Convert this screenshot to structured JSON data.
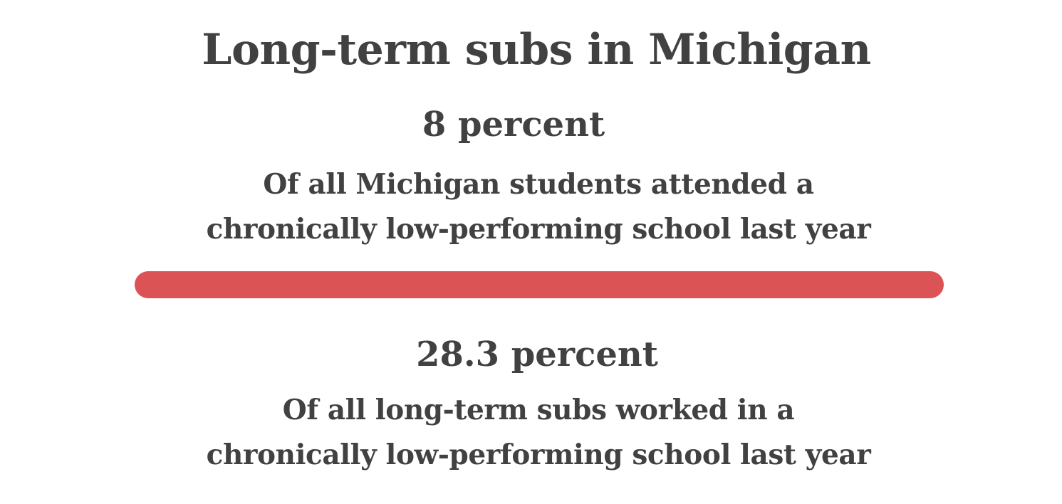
{
  "title": "Long-term subs in Michigan",
  "stat_students": {
    "value": "8 percent",
    "description_line1": "Of all Michigan students attended a",
    "description_line2": "chronically low-performing school last year"
  },
  "divider": {
    "color": "#dc5356"
  },
  "stat_subs": {
    "value": "28.3 percent",
    "description_line1": "Of all long-term subs worked in a",
    "description_line2": "chronically low-performing school last year"
  }
}
